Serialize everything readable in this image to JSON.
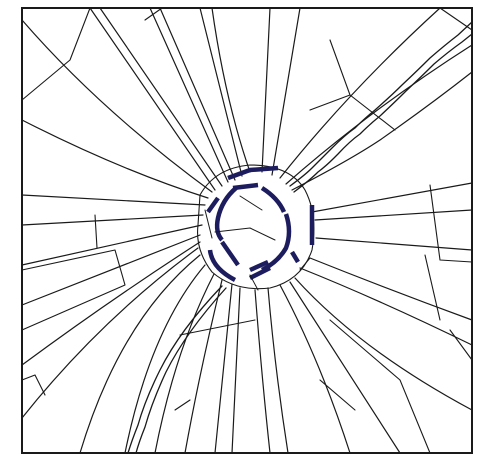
{
  "figure": {
    "subject": "shattered-glass-fracture-pattern",
    "colors": {
      "background": "#ffffff",
      "frame": "#1a1a1a",
      "crack": "#1a1a1a",
      "highlight": "#1c1c5e"
    }
  }
}
